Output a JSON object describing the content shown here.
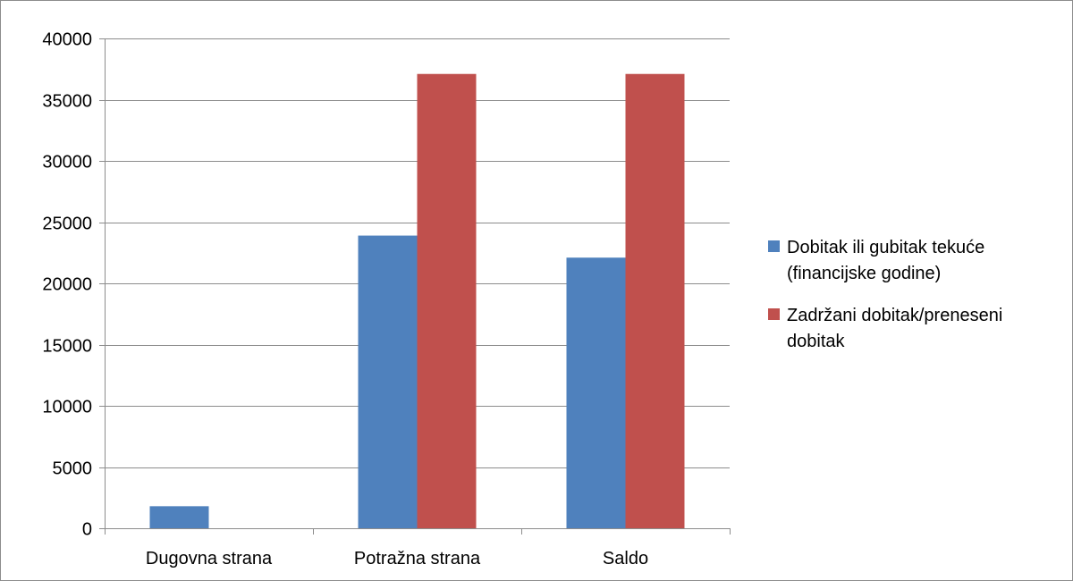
{
  "chart_data": {
    "type": "bar",
    "categories": [
      "Dugovna strana",
      "Potražna strana",
      "Saldo"
    ],
    "series": [
      {
        "name": "Dobitak ili gubitak tekuće (financijske godine)",
        "legend_lines": [
          "Dobitak ili gubitak tekuće",
          "(financijske godine)"
        ],
        "color": "#4f81bd",
        "values": [
          1800,
          23900,
          22100
        ]
      },
      {
        "name": "Zadržani dobitak/preneseni dobitak",
        "legend_lines": [
          "Zadržani dobitak/preneseni",
          "dobitak"
        ],
        "color": "#c0504d",
        "values": [
          0,
          37100,
          37100
        ]
      }
    ],
    "yticks": [
      0,
      5000,
      10000,
      15000,
      20000,
      25000,
      30000,
      35000,
      40000
    ],
    "ylim": [
      0,
      40000
    ],
    "grid": true,
    "legend_position": "right"
  }
}
